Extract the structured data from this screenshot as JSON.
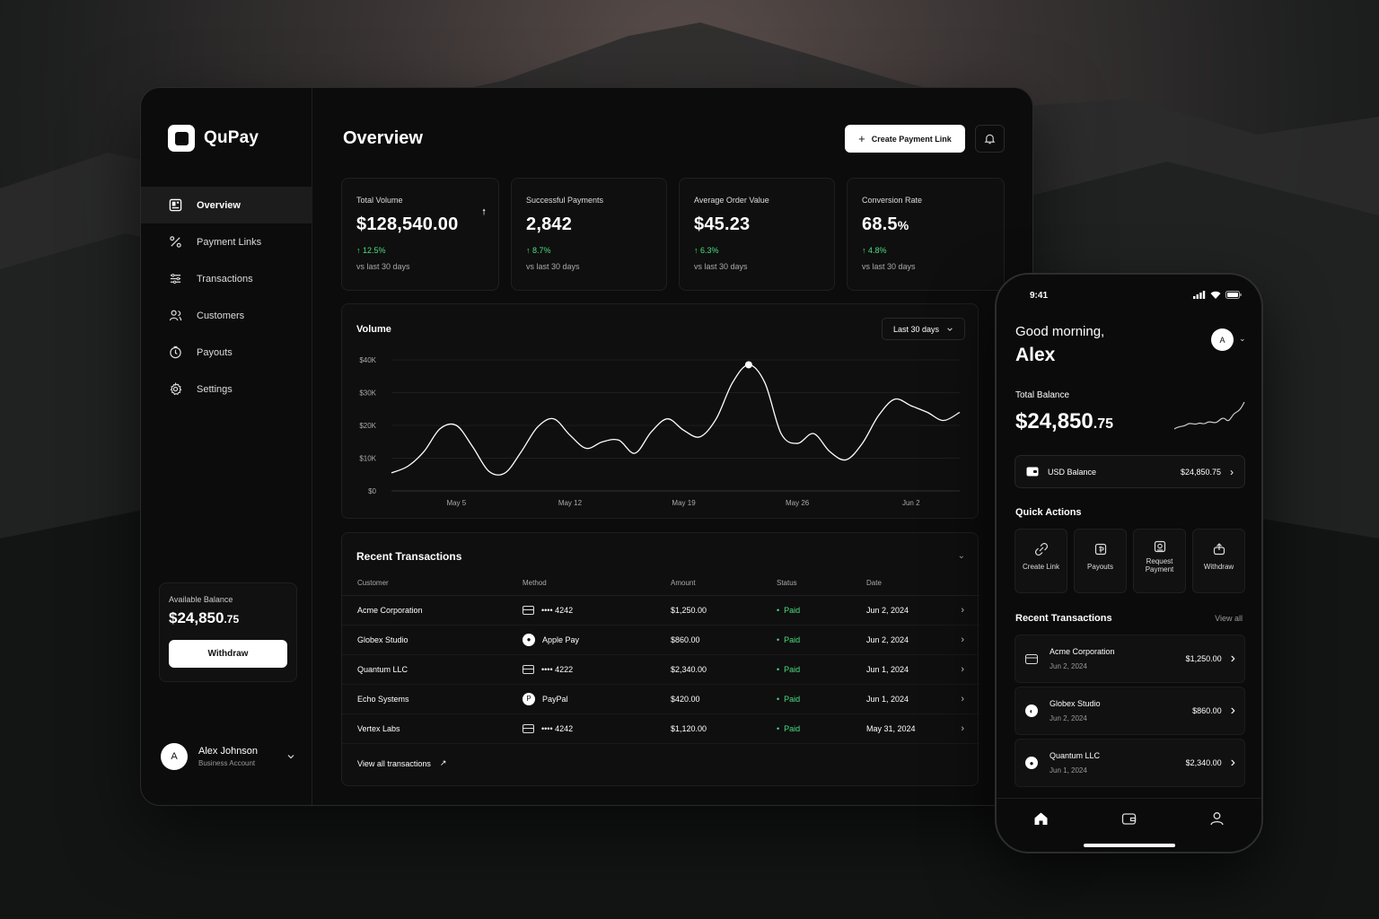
{
  "app": {
    "name": "QuPay"
  },
  "sidebar": {
    "items": [
      {
        "label": "Overview",
        "icon": "overview-icon",
        "active": true
      },
      {
        "label": "Payment Links",
        "icon": "percent-link-icon"
      },
      {
        "label": "Transactions",
        "icon": "transactions-icon"
      },
      {
        "label": "Customers",
        "icon": "customers-icon"
      },
      {
        "label": "Payouts",
        "icon": "payouts-icon"
      },
      {
        "label": "Settings",
        "icon": "gear-icon"
      }
    ],
    "balance": {
      "label": "Available Balance",
      "amount": "$24,850",
      "cents": ".75",
      "button": "Withdraw"
    },
    "user": {
      "initial": "A",
      "name": "Alex Johnson",
      "account": "Business Account"
    }
  },
  "header": {
    "title": "Overview",
    "create_button": "Create Payment Link"
  },
  "stats": [
    {
      "label": "Total Volume",
      "value": "$128,540.00",
      "suffix": "",
      "change": "↑ 12.5%",
      "sub": "vs last 30 days"
    },
    {
      "label": "Successful Payments",
      "value": "2,842",
      "suffix": "",
      "change": "↑ 8.7%",
      "sub": "vs last 30 days"
    },
    {
      "label": "Average Order Value",
      "value": "$45.23",
      "suffix": "",
      "change": "↑ 6.3%",
      "sub": "vs last 30 days"
    },
    {
      "label": "Conversion Rate",
      "value": "68.5",
      "suffix": "%",
      "change": "↑ 4.8%",
      "sub": "vs last 30 days"
    }
  ],
  "volume": {
    "title": "Volume",
    "range": "Last 30 days"
  },
  "chart_data": {
    "type": "line",
    "title": "Volume",
    "y_ticks": [
      "$0",
      "$10K",
      "$20K",
      "$30K",
      "$40K"
    ],
    "ylim": [
      0,
      40000
    ],
    "x_ticks": [
      {
        "label": "May 5",
        "day": 5
      },
      {
        "label": "May 12",
        "day": 12
      },
      {
        "label": "May 19",
        "day": 19
      },
      {
        "label": "May 26",
        "day": 26
      },
      {
        "label": "Jun 2",
        "day": 33
      }
    ],
    "x_range": [
      1,
      36
    ],
    "series": [
      {
        "values": [
          [
            1,
            5500
          ],
          [
            2,
            7500
          ],
          [
            3,
            12000
          ],
          [
            4,
            19000
          ],
          [
            5,
            20000
          ],
          [
            6,
            13500
          ],
          [
            7,
            6000
          ],
          [
            8,
            5500
          ],
          [
            9,
            12000
          ],
          [
            10,
            19500
          ],
          [
            11,
            22000
          ],
          [
            12,
            17000
          ],
          [
            13,
            13000
          ],
          [
            14,
            15000
          ],
          [
            15,
            15500
          ],
          [
            16,
            11500
          ],
          [
            17,
            18000
          ],
          [
            18,
            22000
          ],
          [
            19,
            18500
          ],
          [
            20,
            16500
          ],
          [
            21,
            22000
          ],
          [
            22,
            33000
          ],
          [
            23,
            38500
          ],
          [
            24,
            33000
          ],
          [
            25,
            17500
          ],
          [
            26,
            14500
          ],
          [
            27,
            17500
          ],
          [
            28,
            12000
          ],
          [
            29,
            9500
          ],
          [
            30,
            14500
          ],
          [
            31,
            23000
          ],
          [
            32,
            28000
          ],
          [
            33,
            26000
          ],
          [
            34,
            24000
          ],
          [
            35,
            21500
          ],
          [
            36,
            24000
          ]
        ]
      }
    ],
    "highlight_index": 22
  },
  "transactions": {
    "title": "Recent Transactions",
    "columns": [
      "Customer",
      "Method",
      "Amount",
      "Status",
      "Date"
    ],
    "rows": [
      {
        "customer": "Acme Corporation",
        "method_icon": "card",
        "method": "•••• 4242",
        "amount": "$1,250.00",
        "status": "Paid",
        "date": "Jun 2, 2024"
      },
      {
        "customer": "Globex Studio",
        "method_icon": "apple",
        "method": "Apple Pay",
        "amount": "$860.00",
        "status": "Paid",
        "date": "Jun 2, 2024"
      },
      {
        "customer": "Quantum LLC",
        "method_icon": "card",
        "method": "•••• 4222",
        "amount": "$2,340.00",
        "status": "Paid",
        "date": "Jun 1, 2024"
      },
      {
        "customer": "Echo Systems",
        "method_icon": "paypal",
        "method": "PayPal",
        "amount": "$420.00",
        "status": "Paid",
        "date": "Jun 1, 2024"
      },
      {
        "customer": "Vertex Labs",
        "method_icon": "card",
        "method": "•••• 4242",
        "amount": "$1,120.00",
        "status": "Paid",
        "date": "May 31, 2024"
      }
    ],
    "view_all": "View all transactions"
  },
  "phone": {
    "time": "9:41",
    "greeting": "Good morning,",
    "name": "Alex",
    "avatar": "A",
    "total_label": "Total Balance",
    "total_amount": "$24,850",
    "total_cents": ".75",
    "usd_label": "USD Balance",
    "usd_amount": "$24,850.75",
    "quick_actions_title": "Quick Actions",
    "quick_actions": [
      {
        "label": "Create Link",
        "icon": "link-icon"
      },
      {
        "label": "Payouts",
        "icon": "payouts-icon"
      },
      {
        "label": "Request Payment",
        "icon": "request-icon"
      },
      {
        "label": "Withdraw",
        "icon": "withdraw-icon"
      }
    ],
    "recent_title": "Recent Transactions",
    "view_all": "View all",
    "recent": [
      {
        "name": "Acme Corporation",
        "date": "Jun 2, 2024",
        "amount": "$1,250.00",
        "icon": "card"
      },
      {
        "name": "Globex Studio",
        "date": "Jun 2, 2024",
        "amount": "$860.00",
        "icon": "pay"
      },
      {
        "name": "Quantum LLC",
        "date": "Jun 1, 2024",
        "amount": "$2,340.00",
        "icon": "pay"
      }
    ],
    "tabs": [
      "home-icon",
      "wallet-icon",
      "profile-icon"
    ]
  }
}
